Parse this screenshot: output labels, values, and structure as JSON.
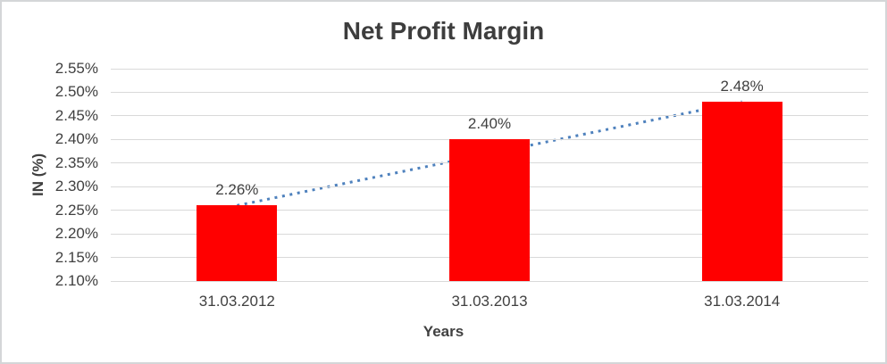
{
  "chart_data": {
    "type": "bar",
    "title": "Net Profit Margin",
    "xlabel": "Years",
    "ylabel": "IN (%)",
    "categories": [
      "31.03.2012",
      "31.03.2013",
      "31.03.2014"
    ],
    "values": [
      2.26,
      2.4,
      2.48
    ],
    "data_labels": [
      "2.26%",
      "2.40%",
      "2.48%"
    ],
    "ylim": [
      2.1,
      2.55
    ],
    "ytick_step": 0.05,
    "yticks": [
      {
        "value": 2.1,
        "label": "2.10%"
      },
      {
        "value": 2.15,
        "label": "2.15%"
      },
      {
        "value": 2.2,
        "label": "2.20%"
      },
      {
        "value": 2.25,
        "label": "2.25%"
      },
      {
        "value": 2.3,
        "label": "2.30%"
      },
      {
        "value": 2.35,
        "label": "2.35%"
      },
      {
        "value": 2.4,
        "label": "2.40%"
      },
      {
        "value": 2.45,
        "label": "2.45%"
      },
      {
        "value": 2.5,
        "label": "2.50%"
      },
      {
        "value": 2.55,
        "label": "2.55%"
      }
    ],
    "grid": true,
    "legend": false,
    "trendline": {
      "type": "linear",
      "style": "dotted",
      "start_value": 2.26,
      "end_value": 2.48
    }
  },
  "colors": {
    "bar": "#ff0000",
    "trendline": "#4e81bd",
    "gridline": "#d9d9d9",
    "text": "#404040",
    "title": "#3d3d3d",
    "border": "#d4d6d8",
    "background": "#ffffff"
  }
}
